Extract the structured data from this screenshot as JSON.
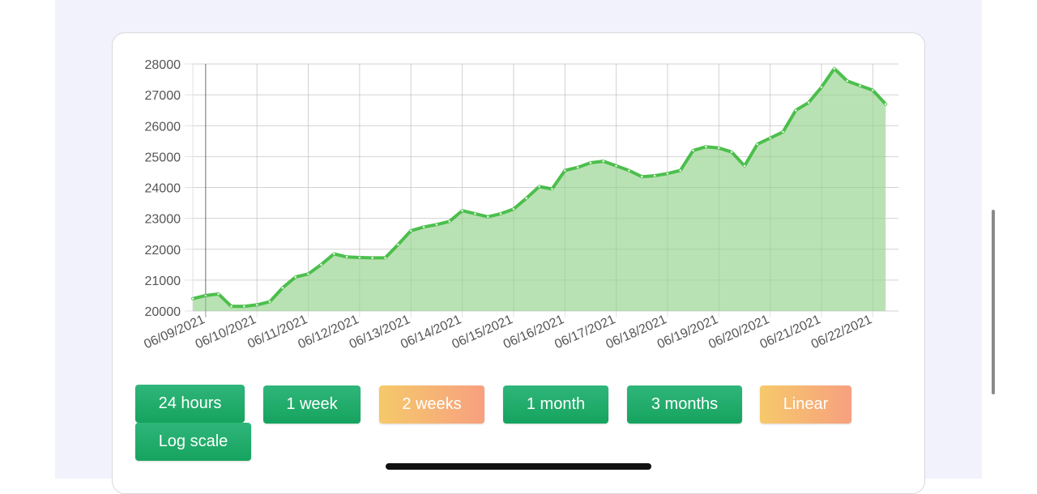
{
  "chart_data": {
    "type": "area",
    "title": "",
    "xlabel": "",
    "ylabel": "",
    "ylim": [
      20000,
      28000
    ],
    "yticks": [
      20000,
      21000,
      22000,
      23000,
      24000,
      25000,
      26000,
      27000,
      28000
    ],
    "xticks": [
      "06/09/2021",
      "06/10/2021",
      "06/11/2021",
      "06/12/2021",
      "06/13/2021",
      "06/14/2021",
      "06/15/2021",
      "06/16/2021",
      "06/17/2021",
      "06/18/2021",
      "06/19/2021",
      "06/20/2021",
      "06/21/2021",
      "06/22/2021"
    ],
    "grid": true,
    "colors": {
      "line": "#4cbf4c",
      "fill": "#b5e0b0"
    },
    "series": [
      {
        "x": [
          "06/08/2021 18:00",
          "06/09/2021 00:00",
          "06/09/2021 06:00",
          "06/09/2021 12:00",
          "06/09/2021 18:00",
          "06/10/2021 00:00",
          "06/10/2021 06:00",
          "06/10/2021 12:00",
          "06/10/2021 18:00",
          "06/11/2021 00:00",
          "06/11/2021 06:00",
          "06/11/2021 12:00",
          "06/11/2021 18:00",
          "06/12/2021 00:00",
          "06/12/2021 06:00",
          "06/12/2021 12:00",
          "06/12/2021 18:00",
          "06/13/2021 00:00",
          "06/13/2021 06:00",
          "06/13/2021 12:00",
          "06/13/2021 18:00",
          "06/14/2021 00:00",
          "06/14/2021 06:00",
          "06/14/2021 12:00",
          "06/14/2021 18:00",
          "06/15/2021 00:00",
          "06/15/2021 06:00",
          "06/15/2021 12:00",
          "06/15/2021 18:00",
          "06/16/2021 00:00",
          "06/16/2021 06:00",
          "06/16/2021 12:00",
          "06/16/2021 18:00",
          "06/17/2021 00:00",
          "06/17/2021 06:00",
          "06/17/2021 12:00",
          "06/17/2021 18:00",
          "06/18/2021 00:00",
          "06/18/2021 06:00",
          "06/18/2021 12:00",
          "06/18/2021 18:00",
          "06/19/2021 00:00",
          "06/19/2021 06:00",
          "06/19/2021 12:00",
          "06/19/2021 18:00",
          "06/20/2021 00:00",
          "06/20/2021 06:00",
          "06/20/2021 12:00",
          "06/20/2021 18:00",
          "06/21/2021 00:00",
          "06/21/2021 06:00",
          "06/21/2021 12:00",
          "06/21/2021 18:00",
          "06/22/2021 00:00",
          "06/22/2021 06:00"
        ],
        "values": [
          20400,
          20500,
          20550,
          20150,
          20150,
          20200,
          20300,
          20750,
          21100,
          21200,
          21500,
          21850,
          21750,
          21730,
          21720,
          21720,
          22150,
          22600,
          22720,
          22800,
          22900,
          23250,
          23150,
          23050,
          23150,
          23300,
          23650,
          24030,
          23950,
          24550,
          24650,
          24800,
          24850,
          24700,
          24550,
          24350,
          24380,
          24450,
          24550,
          25200,
          25320,
          25280,
          25150,
          24700,
          25400,
          25600,
          25800,
          26500,
          26750,
          27250,
          27850,
          27450,
          27300,
          27150,
          26700
        ]
      }
    ]
  },
  "buttons": {
    "b24h": "24 hours",
    "b1w": "1 week",
    "b2w": "2 weeks",
    "b1m": "1 month",
    "b3m": "3 months",
    "linear": "Linear",
    "log": "Log scale"
  },
  "colors": {
    "green_button": "#1aa866",
    "orange_button_start": "#f6c96a",
    "orange_button_end": "#f7a07f"
  }
}
